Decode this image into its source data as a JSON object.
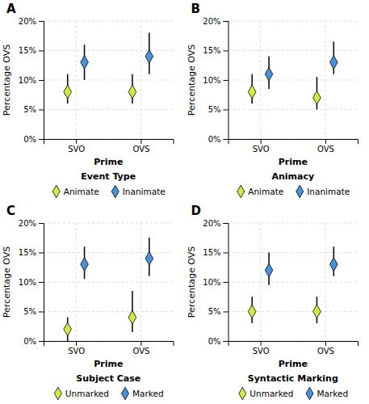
{
  "chart_data": [
    {
      "type": "dot",
      "title": "A",
      "xlabel": "Prime",
      "ylabel": "Percentage OVS",
      "categories": [
        "SVO",
        "OVS"
      ],
      "legend_title": "Event Type",
      "legend": "bottom",
      "marker": "diamond",
      "grid": true,
      "ylim": [
        0,
        20
      ],
      "yticks": [
        {
          "value": 0,
          "label": "0%"
        },
        {
          "value": 5,
          "label": "5%"
        },
        {
          "value": 10,
          "label": "10%"
        },
        {
          "value": 15,
          "label": "15%"
        },
        {
          "value": 20,
          "label": "20%"
        }
      ],
      "series": [
        {
          "name": "Animate",
          "color": "#d4e84a",
          "values": [
            8.0,
            8.0
          ],
          "ci_low": [
            6.0,
            6.0
          ],
          "ci_high": [
            11.0,
            11.0
          ]
        },
        {
          "name": "Inanimate",
          "color": "#4a90d9",
          "values": [
            13.0,
            14.0
          ],
          "ci_low": [
            10.0,
            11.0
          ],
          "ci_high": [
            16.0,
            18.0
          ]
        }
      ]
    },
    {
      "type": "dot",
      "title": "B",
      "xlabel": "Prime",
      "ylabel": "Percentage OVS",
      "categories": [
        "SVO",
        "OVS"
      ],
      "legend_title": "Animacy",
      "legend": "bottom",
      "marker": "diamond",
      "grid": true,
      "ylim": [
        0,
        20
      ],
      "yticks": [
        {
          "value": 0,
          "label": "0%"
        },
        {
          "value": 5,
          "label": "5%"
        },
        {
          "value": 10,
          "label": "10%"
        },
        {
          "value": 15,
          "label": "15%"
        },
        {
          "value": 20,
          "label": "20%"
        }
      ],
      "series": [
        {
          "name": "Animate",
          "color": "#d4e84a",
          "values": [
            8.0,
            7.0
          ],
          "ci_low": [
            6.0,
            5.0
          ],
          "ci_high": [
            11.0,
            10.5
          ]
        },
        {
          "name": "Inanimate",
          "color": "#4a90d9",
          "values": [
            11.0,
            13.0
          ],
          "ci_low": [
            8.5,
            11.0
          ],
          "ci_high": [
            14.0,
            16.5
          ]
        }
      ]
    },
    {
      "type": "dot",
      "title": "C",
      "xlabel": "Prime",
      "ylabel": "Percentage OVS",
      "categories": [
        "SVO",
        "OVS"
      ],
      "legend_title": "Subject Case",
      "legend": "bottom",
      "marker": "diamond",
      "grid": true,
      "ylim": [
        0,
        20
      ],
      "yticks": [
        {
          "value": 0,
          "label": "0%"
        },
        {
          "value": 5,
          "label": "5%"
        },
        {
          "value": 10,
          "label": "10%"
        },
        {
          "value": 15,
          "label": "15%"
        },
        {
          "value": 20,
          "label": "20%"
        }
      ],
      "series": [
        {
          "name": "Unmarked",
          "color": "#d4e84a",
          "values": [
            2.0,
            4.0
          ],
          "ci_low": [
            0.0,
            1.5
          ],
          "ci_high": [
            4.0,
            8.5
          ]
        },
        {
          "name": "Marked",
          "color": "#4a90d9",
          "values": [
            13.0,
            14.0
          ],
          "ci_low": [
            10.5,
            11.0
          ],
          "ci_high": [
            16.0,
            17.5
          ]
        }
      ]
    },
    {
      "type": "dot",
      "title": "D",
      "xlabel": "Prime",
      "ylabel": "Percentage OVS",
      "categories": [
        "SVO",
        "OVS"
      ],
      "legend_title": "Syntactic Marking",
      "legend": "bottom",
      "marker": "diamond",
      "grid": true,
      "ylim": [
        0,
        20
      ],
      "yticks": [
        {
          "value": 0,
          "label": "0%"
        },
        {
          "value": 5,
          "label": "5%"
        },
        {
          "value": 10,
          "label": "10%"
        },
        {
          "value": 15,
          "label": "15%"
        },
        {
          "value": 20,
          "label": "20%"
        }
      ],
      "series": [
        {
          "name": "Unmarked",
          "color": "#d4e84a",
          "values": [
            5.0,
            5.0
          ],
          "ci_low": [
            3.0,
            3.0
          ],
          "ci_high": [
            7.5,
            7.5
          ]
        },
        {
          "name": "Marked",
          "color": "#4a90d9",
          "values": [
            12.0,
            13.0
          ],
          "ci_low": [
            9.5,
            11.0
          ],
          "ci_high": [
            15.0,
            16.0
          ]
        }
      ]
    }
  ]
}
